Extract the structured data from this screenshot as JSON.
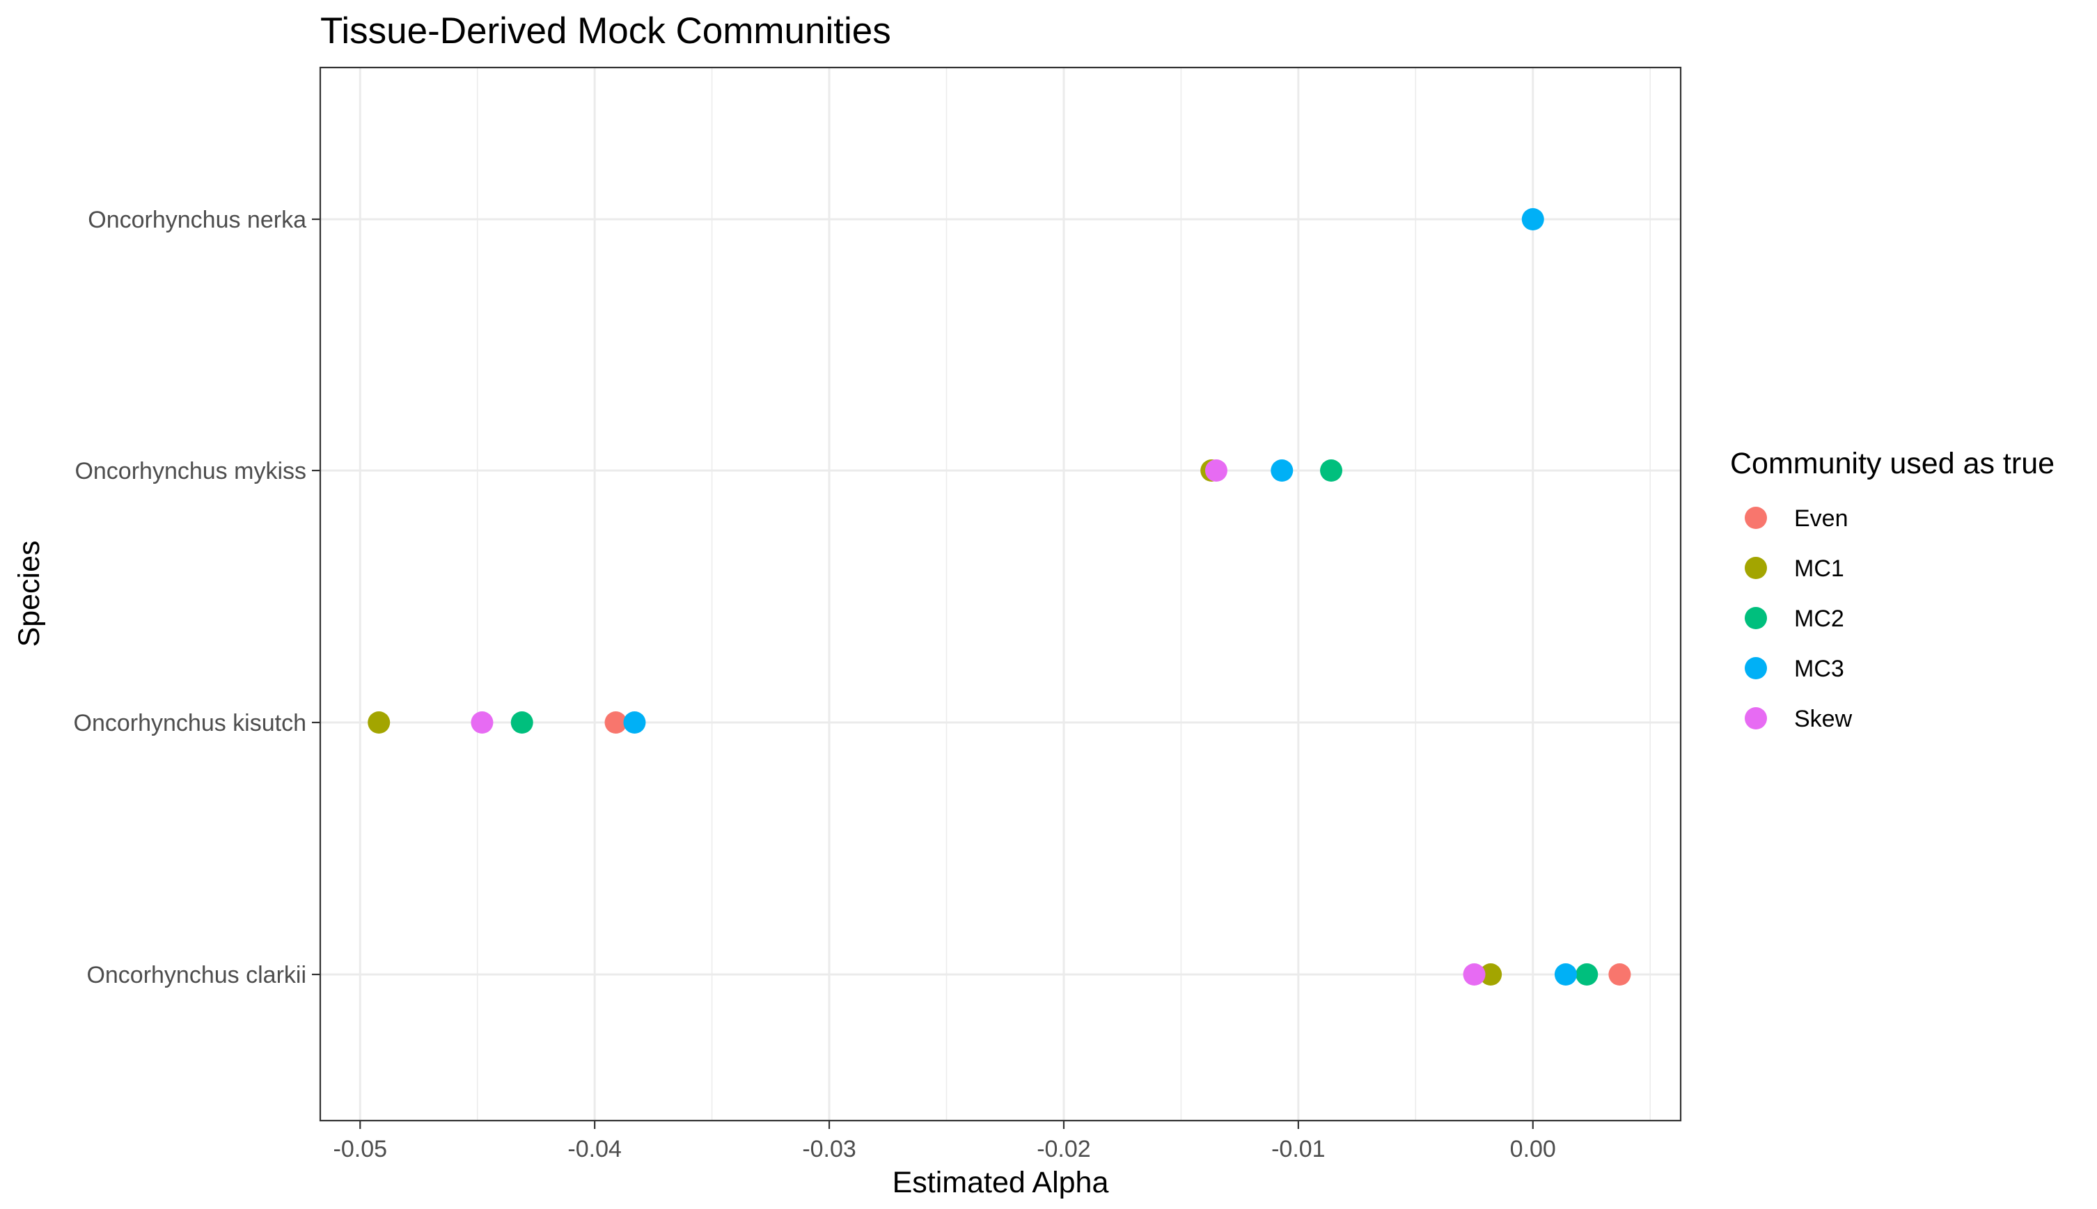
{
  "chart_data": {
    "type": "scatter",
    "title": "Tissue-Derived Mock Communities",
    "xlabel": "Estimated Alpha",
    "ylabel": "Species",
    "xlim": [
      -0.0517,
      0.0063
    ],
    "x_ticks": [
      -0.05,
      -0.04,
      -0.03,
      -0.02,
      -0.01,
      0.0
    ],
    "x_tick_labels": [
      "-0.05",
      "-0.04",
      "-0.03",
      "-0.02",
      "-0.01",
      "0.00"
    ],
    "categories": [
      "Oncorhynchus nerka",
      "Oncorhynchus mykiss",
      "Oncorhynchus kisutch",
      "Oncorhynchus clarkii"
    ],
    "grid": true,
    "legend": {
      "title": "Community used as true",
      "placement": "right"
    },
    "series": [
      {
        "name": "Even",
        "color": "#F8766D",
        "points": [
          {
            "category": "Oncorhynchus kisutch",
            "x": -0.0391
          },
          {
            "category": "Oncorhynchus clarkii",
            "x": 0.0037
          }
        ]
      },
      {
        "name": "MC1",
        "color": "#A3A500",
        "points": [
          {
            "category": "Oncorhynchus mykiss",
            "x": -0.0137
          },
          {
            "category": "Oncorhynchus kisutch",
            "x": -0.0492
          },
          {
            "category": "Oncorhynchus clarkii",
            "x": -0.0018
          }
        ]
      },
      {
        "name": "MC2",
        "color": "#00BF7D",
        "points": [
          {
            "category": "Oncorhynchus mykiss",
            "x": -0.0086
          },
          {
            "category": "Oncorhynchus kisutch",
            "x": -0.0431
          },
          {
            "category": "Oncorhynchus clarkii",
            "x": 0.0023
          }
        ]
      },
      {
        "name": "MC3",
        "color": "#00B0F6",
        "points": [
          {
            "category": "Oncorhynchus nerka",
            "x": 0.0
          },
          {
            "category": "Oncorhynchus mykiss",
            "x": -0.0107
          },
          {
            "category": "Oncorhynchus kisutch",
            "x": -0.0383
          },
          {
            "category": "Oncorhynchus clarkii",
            "x": 0.0014
          }
        ]
      },
      {
        "name": "Skew",
        "color": "#E76BF3",
        "points": [
          {
            "category": "Oncorhynchus mykiss",
            "x": -0.0135
          },
          {
            "category": "Oncorhynchus kisutch",
            "x": -0.0448
          },
          {
            "category": "Oncorhynchus clarkii",
            "x": -0.0025
          }
        ]
      }
    ]
  }
}
